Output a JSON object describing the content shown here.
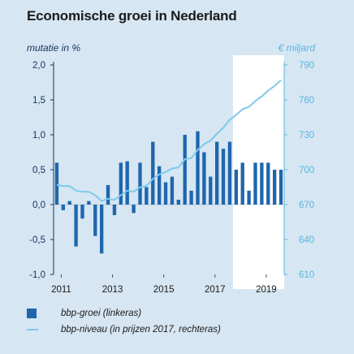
{
  "header": {
    "title": "Economische groei in Nederland",
    "unit_left": "mutatie in %",
    "unit_right": "€ miljard"
  },
  "legend": {
    "bar_label": "bbp-groei (linkeras)",
    "line_label": "bbp-niveau (in prijzen 2017, rechteras)"
  },
  "colors": {
    "bars": "#1f66ad",
    "line": "#7ccbeb",
    "background": "#d6e6f2",
    "forecast_band": "#ffffff",
    "left_axis": "#15325d",
    "right_axis": "#5ab6e0"
  },
  "chart_data": {
    "type": "bar+line",
    "title": "Economische groei in Nederland",
    "x_ticks": [
      "2011",
      "2013",
      "2015",
      "2017",
      "2019"
    ],
    "quarters_start": "2011-Q1",
    "forecast_from": "2019-Q1",
    "y_left": {
      "label": "mutatie in %",
      "lim": [
        -1.0,
        2.0
      ],
      "ticks": [
        "2,0",
        "1,5",
        "1,0",
        "0,5",
        "0,0",
        "-0,5",
        "-1,0"
      ]
    },
    "y_right": {
      "label": "€ miljard",
      "lim": [
        610,
        790
      ],
      "ticks": [
        "790",
        "760",
        "730",
        "700",
        "670",
        "640",
        "610"
      ]
    },
    "series": [
      {
        "name": "bbp-groei (linkeras)",
        "type": "bar",
        "values": [
          0.6,
          -0.08,
          0.05,
          -0.6,
          -0.2,
          0.05,
          -0.45,
          -0.7,
          0.28,
          -0.15,
          0.6,
          0.62,
          -0.12,
          0.6,
          0.25,
          0.9,
          0.55,
          0.32,
          0.4,
          0.07,
          1.0,
          0.2,
          1.05,
          0.75,
          0.4,
          0.9,
          0.8,
          0.9,
          0.5,
          0.6,
          0.2,
          0.6,
          0.6,
          0.6,
          0.5,
          0.5
        ]
      },
      {
        "name": "bbp-niveau (in prijzen 2017, rechteras)",
        "type": "line",
        "values": [
          687,
          686,
          686,
          682,
          681,
          681,
          678,
          673,
          675,
          674,
          678,
          682,
          681,
          685,
          686,
          692,
          696,
          698,
          701,
          702,
          709,
          710,
          717,
          722,
          725,
          731,
          736,
          743,
          747,
          752,
          754,
          759,
          763,
          768,
          772,
          777
        ]
      }
    ]
  }
}
